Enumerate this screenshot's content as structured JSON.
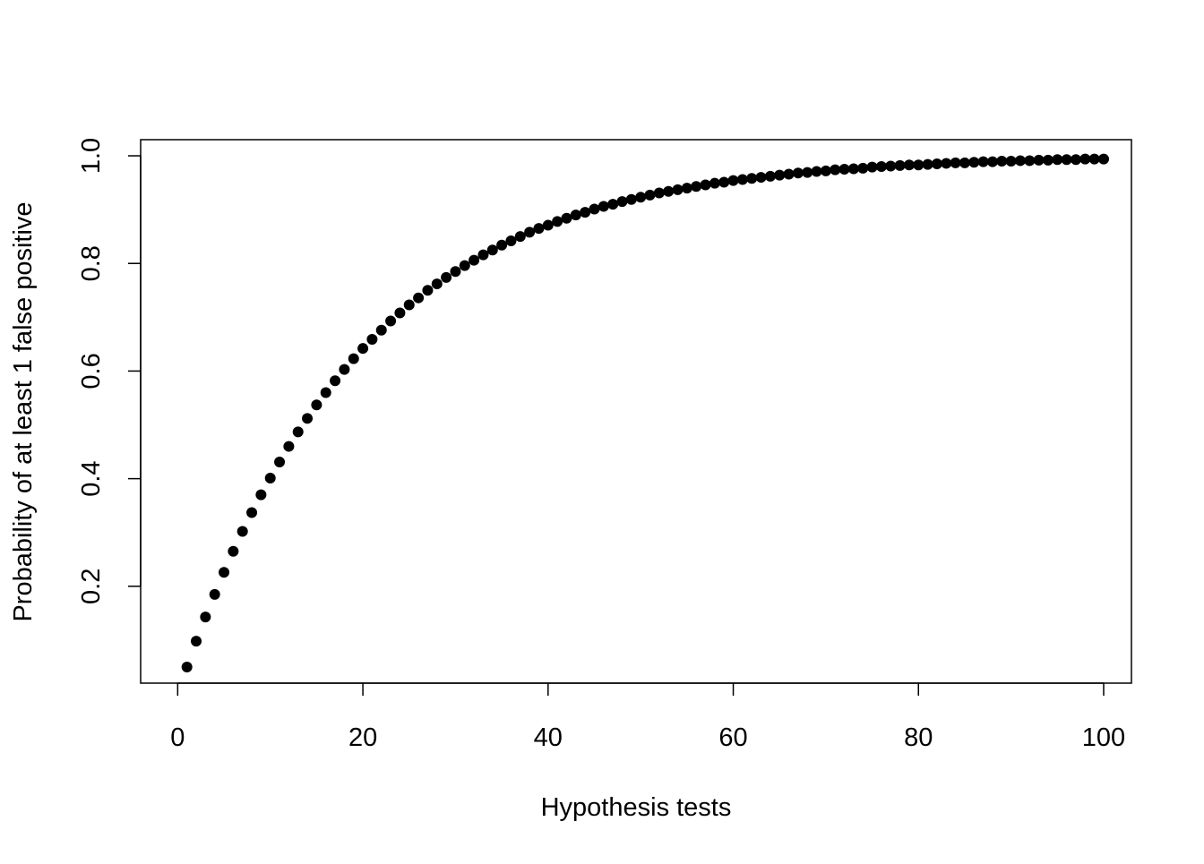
{
  "chart_data": {
    "type": "scatter",
    "title": "",
    "xlabel": "Hypothesis tests",
    "ylabel": "Probability of at least 1 false positive",
    "xlim": [
      -4,
      103
    ],
    "ylim": [
      0.02,
      1.03
    ],
    "x_ticks": [
      0,
      20,
      40,
      60,
      80,
      100
    ],
    "x_tick_labels": [
      "0",
      "20",
      "40",
      "60",
      "80",
      "100"
    ],
    "y_ticks": [
      0.2,
      0.4,
      0.6,
      0.8,
      1.0
    ],
    "y_tick_labels": [
      "0.2",
      "0.4",
      "0.6",
      "0.8",
      "1.0"
    ],
    "grid": false,
    "legend": "none",
    "point_color": "#000000",
    "series": [
      {
        "x": [
          1,
          2,
          3,
          4,
          5,
          6,
          7,
          8,
          9,
          10,
          11,
          12,
          13,
          14,
          15,
          16,
          17,
          18,
          19,
          20,
          21,
          22,
          23,
          24,
          25,
          26,
          27,
          28,
          29,
          30,
          31,
          32,
          33,
          34,
          35,
          36,
          37,
          38,
          39,
          40,
          41,
          42,
          43,
          44,
          45,
          46,
          47,
          48,
          49,
          50,
          51,
          52,
          53,
          54,
          55,
          56,
          57,
          58,
          59,
          60,
          61,
          62,
          63,
          64,
          65,
          66,
          67,
          68,
          69,
          70,
          71,
          72,
          73,
          74,
          75,
          76,
          77,
          78,
          79,
          80,
          81,
          82,
          83,
          84,
          85,
          86,
          87,
          88,
          89,
          90,
          91,
          92,
          93,
          94,
          95,
          96,
          97,
          98,
          99,
          100
        ],
        "y": [
          0.05,
          0.098,
          0.143,
          0.185,
          0.226,
          0.265,
          0.302,
          0.337,
          0.37,
          0.401,
          0.431,
          0.46,
          0.487,
          0.512,
          0.537,
          0.56,
          0.582,
          0.603,
          0.623,
          0.642,
          0.659,
          0.676,
          0.693,
          0.708,
          0.723,
          0.736,
          0.75,
          0.762,
          0.774,
          0.785,
          0.796,
          0.806,
          0.816,
          0.825,
          0.834,
          0.842,
          0.85,
          0.858,
          0.865,
          0.871,
          0.878,
          0.884,
          0.89,
          0.895,
          0.901,
          0.906,
          0.91,
          0.915,
          0.919,
          0.923,
          0.927,
          0.931,
          0.934,
          0.937,
          0.94,
          0.943,
          0.946,
          0.949,
          0.951,
          0.954,
          0.956,
          0.958,
          0.96,
          0.962,
          0.964,
          0.966,
          0.968,
          0.969,
          0.971,
          0.972,
          0.974,
          0.975,
          0.976,
          0.977,
          0.979,
          0.98,
          0.981,
          0.982,
          0.983,
          0.983,
          0.984,
          0.985,
          0.986,
          0.987,
          0.987,
          0.988,
          0.989,
          0.989,
          0.99,
          0.99,
          0.991,
          0.991,
          0.992,
          0.992,
          0.993,
          0.993,
          0.993,
          0.994,
          0.994,
          0.994
        ]
      }
    ]
  }
}
